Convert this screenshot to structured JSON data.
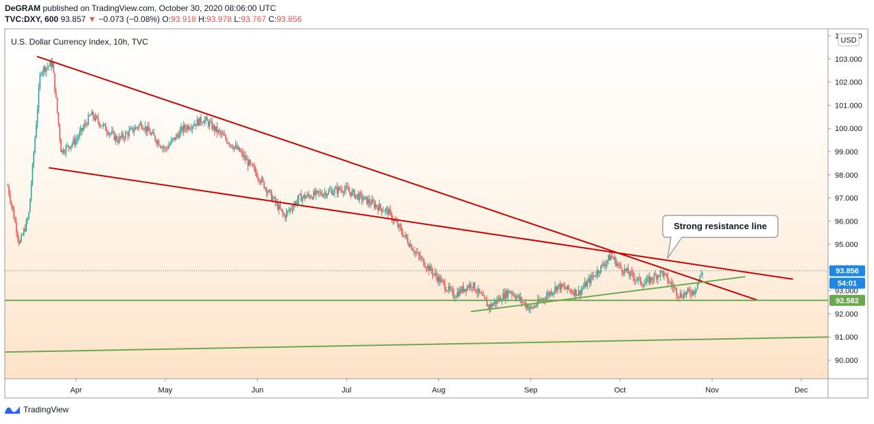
{
  "header": {
    "line1_author": "DeGRAM",
    "line1_rest": "published on TradingView.com, October 30, 2020 08:06:00 UTC",
    "symbol": "TVC:DXY, 600",
    "last": "93.857",
    "change_arrow": "▼",
    "change": "−0.073 (−0.08%)",
    "o_label": "O:",
    "o_value": "93.918",
    "h_label": "H:",
    "h_value": "93.978",
    "l_label": "L:",
    "l_value": "93.767",
    "c_label": "C:",
    "c_value": "93.856"
  },
  "chart_title": "U.S. Dollar Currency Index, 10h, TVC",
  "currency_badge": "USD",
  "footer": {
    "brand": "TradingView",
    "logo_icon": "tradingview-logo-icon"
  },
  "colors": {
    "resistance": "#cc0000",
    "support": "#6aa84f",
    "up": "#26a69a",
    "down": "#ef5350",
    "price_tag": "#1e88e5",
    "fill_top": "#ffffff",
    "fill_bottom": "#fde3c8"
  },
  "chart_data": {
    "type": "candlestick",
    "y_axis": {
      "min": 89.2,
      "max": 104.3,
      "ticks": [
        "90.000",
        "91.000",
        "92.000",
        "93.000",
        "94.000",
        "95.000",
        "96.000",
        "97.000",
        "98.000",
        "99.000",
        "100.000",
        "101.000",
        "102.000",
        "103.000",
        "104.000"
      ]
    },
    "x_axis": {
      "labels": [
        {
          "label": "Apr",
          "date": "2020-04-01"
        },
        {
          "label": "May",
          "date": "2020-05-01"
        },
        {
          "label": "Jun",
          "date": "2020-06-01"
        },
        {
          "label": "Jul",
          "date": "2020-07-01"
        },
        {
          "label": "Aug",
          "date": "2020-08-01"
        },
        {
          "label": "Sep",
          "date": "2020-09-01"
        },
        {
          "label": "Oct",
          "date": "2020-10-01"
        },
        {
          "label": "Nov",
          "date": "2020-11-01"
        },
        {
          "label": "Dec",
          "date": "2020-12-01"
        }
      ],
      "start": "2020-03-08",
      "end": "2020-12-10"
    },
    "price_path": [
      [
        "2020-03-09",
        97.5
      ],
      [
        "2020-03-13",
        95.0
      ],
      [
        "2020-03-16",
        96.2
      ],
      [
        "2020-03-20",
        102.5
      ],
      [
        "2020-03-24",
        102.8
      ],
      [
        "2020-03-27",
        99.0
      ],
      [
        "2020-04-01",
        99.5
      ],
      [
        "2020-04-06",
        100.6
      ],
      [
        "2020-04-15",
        99.5
      ],
      [
        "2020-04-23",
        100.2
      ],
      [
        "2020-05-01",
        99.1
      ],
      [
        "2020-05-07",
        100.0
      ],
      [
        "2020-05-14",
        100.4
      ],
      [
        "2020-05-26",
        99.0
      ],
      [
        "2020-06-01",
        98.0
      ],
      [
        "2020-06-10",
        96.2
      ],
      [
        "2020-06-15",
        97.0
      ],
      [
        "2020-06-30",
        97.4
      ],
      [
        "2020-07-15",
        96.4
      ],
      [
        "2020-07-25",
        94.5
      ],
      [
        "2020-08-01",
        93.5
      ],
      [
        "2020-08-06",
        92.8
      ],
      [
        "2020-08-12",
        93.3
      ],
      [
        "2020-08-18",
        92.3
      ],
      [
        "2020-08-25",
        93.0
      ],
      [
        "2020-09-01",
        92.2
      ],
      [
        "2020-09-10",
        93.2
      ],
      [
        "2020-09-17",
        92.9
      ],
      [
        "2020-09-28",
        94.5
      ],
      [
        "2020-10-01",
        94.0
      ],
      [
        "2020-10-09",
        93.3
      ],
      [
        "2020-10-15",
        93.8
      ],
      [
        "2020-10-21",
        92.8
      ],
      [
        "2020-10-26",
        93.0
      ],
      [
        "2020-10-29",
        93.9
      ]
    ],
    "current_price": "93.856",
    "countdown": "54:01",
    "support_price": "92.582",
    "trend_lines": [
      {
        "name": "upper-resistance",
        "color": "#cc0000",
        "from": [
          "2020-03-19",
          103.1
        ],
        "to": [
          "2020-11-16",
          92.6
        ]
      },
      {
        "name": "lower-resistance",
        "color": "#cc0000",
        "from": [
          "2020-03-23",
          98.3
        ],
        "to": [
          "2020-11-28",
          93.5
        ]
      },
      {
        "name": "short-support",
        "color": "#6aa84f",
        "from": [
          "2020-08-12",
          92.1
        ],
        "to": [
          "2020-11-12",
          93.6
        ]
      },
      {
        "name": "long-support",
        "color": "#6aa84f",
        "from": [
          "2020-03-08",
          90.35
        ],
        "to": [
          "2020-12-10",
          91.0
        ]
      }
    ],
    "horizontal_line": {
      "price": 92.582,
      "color": "#6aa84f"
    },
    "annotation": {
      "text": "Strong resistance line",
      "anchor": [
        "2020-10-17",
        94.4
      ]
    }
  }
}
